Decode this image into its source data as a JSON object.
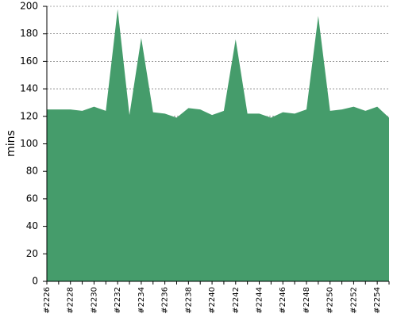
{
  "chart_data": {
    "type": "area",
    "y_label": "mins",
    "categories": [
      "#2226",
      null,
      "#2228",
      null,
      "#2230",
      null,
      "#2232",
      null,
      "#2234",
      null,
      "#2236",
      null,
      "#2238",
      null,
      "#2240",
      null,
      "#2242",
      null,
      "#2244",
      null,
      "#2246",
      null,
      "#2248",
      null,
      "#2250",
      null,
      "#2252",
      null,
      "#2254",
      null
    ],
    "values": [
      125,
      125,
      125,
      124,
      127,
      124,
      198,
      121,
      177,
      123,
      122,
      119,
      126,
      125,
      121,
      124,
      176,
      122,
      122,
      119,
      123,
      122,
      125,
      193,
      124,
      125,
      127,
      124,
      127,
      119
    ],
    "color": "#459c6b",
    "ylim": [
      0,
      200
    ],
    "yticks": [
      0,
      20,
      40,
      60,
      80,
      100,
      120,
      140,
      160,
      180,
      200
    ],
    "grid": true
  }
}
